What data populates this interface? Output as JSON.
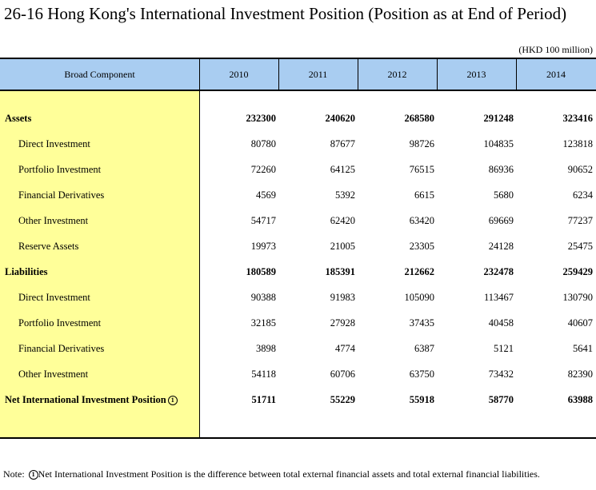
{
  "title": "26-16  Hong Kong's International Investment Position (Position as at End of Period)",
  "unit_note": "(HKD 100 million)",
  "table": {
    "stub_header": "Broad Component",
    "years": [
      "2010",
      "2011",
      "2012",
      "2013",
      "2014"
    ],
    "rows": [
      {
        "label": "Assets",
        "values": [
          "232300",
          "240620",
          "268580",
          "291248",
          "323416"
        ],
        "level": "bold"
      },
      {
        "label": "Direct Investment",
        "values": [
          "80780",
          "87677",
          "98726",
          "104835",
          "123818"
        ],
        "level": "sub"
      },
      {
        "label": "Portfolio Investment",
        "values": [
          "72260",
          "64125",
          "76515",
          "86936",
          "90652"
        ],
        "level": "sub"
      },
      {
        "label": "Financial Derivatives",
        "values": [
          "4569",
          "5392",
          "6615",
          "5680",
          "6234"
        ],
        "level": "sub"
      },
      {
        "label": "Other Investment",
        "values": [
          "54717",
          "62420",
          "63420",
          "69669",
          "77237"
        ],
        "level": "sub"
      },
      {
        "label": "Reserve Assets",
        "values": [
          "19973",
          "21005",
          "23305",
          "24128",
          "25475"
        ],
        "level": "sub"
      },
      {
        "label": "Liabilities",
        "values": [
          "180589",
          "185391",
          "212662",
          "232478",
          "259429"
        ],
        "level": "bold"
      },
      {
        "label": "Direct Investment",
        "values": [
          "90388",
          "91983",
          "105090",
          "113467",
          "130790"
        ],
        "level": "sub"
      },
      {
        "label": "Portfolio Investment",
        "values": [
          "32185",
          "27928",
          "37435",
          "40458",
          "40607"
        ],
        "level": "sub"
      },
      {
        "label": "Financial Derivatives",
        "values": [
          "3898",
          "4774",
          "6387",
          "5121",
          "5641"
        ],
        "level": "sub"
      },
      {
        "label": "Other Investment",
        "values": [
          "54118",
          "60706",
          "63750",
          "73432",
          "82390"
        ],
        "level": "sub"
      },
      {
        "label": "Net International Investment Position",
        "footnote_mark": "1",
        "values": [
          "51711",
          "55229",
          "55918",
          "58770",
          "63988"
        ],
        "level": "bold"
      }
    ]
  },
  "note": {
    "prefix": "Note: ",
    "mark": "1",
    "text": "Net International Investment Position is the difference between total external financial assets and total external financial liabilities."
  },
  "colors": {
    "header_band": "#a9cdf1",
    "stub_fill": "#ffff99"
  }
}
